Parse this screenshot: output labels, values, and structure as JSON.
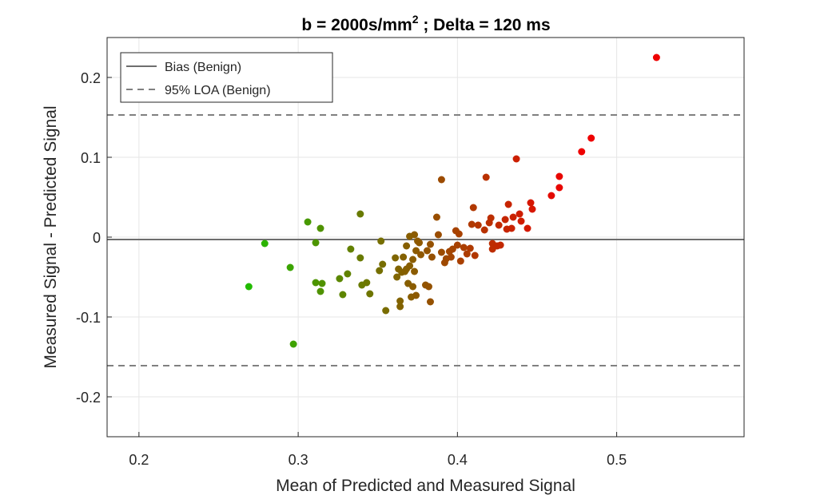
{
  "chart_data": {
    "type": "scatter",
    "title": "b = 2000s/mm",
    "title_superscript": "2",
    "title_suffix": " ; Delta = 120 ms",
    "xlabel": "Mean of Predicted and Measured Signal",
    "ylabel": "Measured Signal - Predicted Signal",
    "xlim": [
      0.18,
      0.58
    ],
    "ylim": [
      -0.25,
      0.25
    ],
    "xticks": [
      0.2,
      0.3,
      0.4,
      0.5
    ],
    "xtick_labels": [
      "0.2",
      "0.3",
      "0.4",
      "0.5"
    ],
    "yticks": [
      -0.2,
      -0.1,
      0,
      0.1,
      0.2
    ],
    "ytick_labels": [
      "-0.2",
      "-0.1",
      "0",
      "0.1",
      "0.2"
    ],
    "grid": true,
    "legend_position": "top-left",
    "legend": [
      {
        "label": "Bias (Benign)",
        "style": "solid"
      },
      {
        "label": "95% LOA (Benign)",
        "style": "dashed"
      }
    ],
    "reference_lines": {
      "bias": -0.003,
      "loa_upper": 0.153,
      "loa_lower": -0.161
    },
    "color_scale": {
      "low": "#22bb00",
      "high": "#ee0000",
      "low_x": 0.27,
      "high_x": 0.47
    },
    "points": [
      {
        "x": 0.269,
        "y": -0.062
      },
      {
        "x": 0.279,
        "y": -0.008
      },
      {
        "x": 0.295,
        "y": -0.038
      },
      {
        "x": 0.297,
        "y": -0.134
      },
      {
        "x": 0.306,
        "y": 0.019
      },
      {
        "x": 0.311,
        "y": -0.007
      },
      {
        "x": 0.311,
        "y": -0.057
      },
      {
        "x": 0.314,
        "y": 0.011
      },
      {
        "x": 0.314,
        "y": -0.068
      },
      {
        "x": 0.315,
        "y": -0.058
      },
      {
        "x": 0.326,
        "y": -0.052
      },
      {
        "x": 0.328,
        "y": -0.072
      },
      {
        "x": 0.331,
        "y": -0.046
      },
      {
        "x": 0.333,
        "y": -0.015
      },
      {
        "x": 0.339,
        "y": 0.029
      },
      {
        "x": 0.339,
        "y": -0.026
      },
      {
        "x": 0.34,
        "y": -0.06
      },
      {
        "x": 0.343,
        "y": -0.057
      },
      {
        "x": 0.345,
        "y": -0.071
      },
      {
        "x": 0.351,
        "y": -0.042
      },
      {
        "x": 0.352,
        "y": -0.005
      },
      {
        "x": 0.353,
        "y": -0.034
      },
      {
        "x": 0.355,
        "y": -0.092
      },
      {
        "x": 0.361,
        "y": -0.026
      },
      {
        "x": 0.362,
        "y": -0.05
      },
      {
        "x": 0.363,
        "y": -0.04
      },
      {
        "x": 0.364,
        "y": -0.08
      },
      {
        "x": 0.364,
        "y": -0.087
      },
      {
        "x": 0.365,
        "y": -0.044
      },
      {
        "x": 0.366,
        "y": -0.025
      },
      {
        "x": 0.367,
        "y": -0.043
      },
      {
        "x": 0.368,
        "y": -0.04
      },
      {
        "x": 0.368,
        "y": -0.011
      },
      {
        "x": 0.369,
        "y": -0.058
      },
      {
        "x": 0.37,
        "y": -0.036
      },
      {
        "x": 0.37,
        "y": 0.001
      },
      {
        "x": 0.371,
        "y": -0.075
      },
      {
        "x": 0.372,
        "y": -0.028
      },
      {
        "x": 0.372,
        "y": -0.062
      },
      {
        "x": 0.373,
        "y": -0.043
      },
      {
        "x": 0.373,
        "y": 0.003
      },
      {
        "x": 0.374,
        "y": -0.073
      },
      {
        "x": 0.374,
        "y": -0.017
      },
      {
        "x": 0.375,
        "y": -0.005
      },
      {
        "x": 0.376,
        "y": -0.007
      },
      {
        "x": 0.377,
        "y": -0.022
      },
      {
        "x": 0.38,
        "y": -0.06
      },
      {
        "x": 0.381,
        "y": -0.017
      },
      {
        "x": 0.382,
        "y": -0.062
      },
      {
        "x": 0.383,
        "y": -0.081
      },
      {
        "x": 0.383,
        "y": -0.009
      },
      {
        "x": 0.384,
        "y": -0.025
      },
      {
        "x": 0.387,
        "y": 0.025
      },
      {
        "x": 0.388,
        "y": 0.003
      },
      {
        "x": 0.39,
        "y": 0.072
      },
      {
        "x": 0.39,
        "y": -0.019
      },
      {
        "x": 0.392,
        "y": -0.032
      },
      {
        "x": 0.393,
        "y": -0.027
      },
      {
        "x": 0.395,
        "y": -0.018
      },
      {
        "x": 0.396,
        "y": -0.025
      },
      {
        "x": 0.397,
        "y": -0.015
      },
      {
        "x": 0.399,
        "y": 0.008
      },
      {
        "x": 0.4,
        "y": -0.01
      },
      {
        "x": 0.401,
        "y": 0.004
      },
      {
        "x": 0.402,
        "y": -0.03
      },
      {
        "x": 0.404,
        "y": -0.013
      },
      {
        "x": 0.406,
        "y": -0.021
      },
      {
        "x": 0.408,
        "y": -0.014
      },
      {
        "x": 0.409,
        "y": 0.016
      },
      {
        "x": 0.41,
        "y": 0.037
      },
      {
        "x": 0.411,
        "y": -0.023
      },
      {
        "x": 0.413,
        "y": 0.015
      },
      {
        "x": 0.417,
        "y": 0.009
      },
      {
        "x": 0.418,
        "y": 0.075
      },
      {
        "x": 0.42,
        "y": 0.018
      },
      {
        "x": 0.421,
        "y": 0.024
      },
      {
        "x": 0.422,
        "y": -0.008
      },
      {
        "x": 0.422,
        "y": -0.015
      },
      {
        "x": 0.425,
        "y": -0.011
      },
      {
        "x": 0.426,
        "y": 0.015
      },
      {
        "x": 0.427,
        "y": -0.01
      },
      {
        "x": 0.43,
        "y": 0.022
      },
      {
        "x": 0.431,
        "y": 0.01
      },
      {
        "x": 0.432,
        "y": 0.041
      },
      {
        "x": 0.434,
        "y": 0.011
      },
      {
        "x": 0.435,
        "y": 0.025
      },
      {
        "x": 0.437,
        "y": 0.098
      },
      {
        "x": 0.439,
        "y": 0.029
      },
      {
        "x": 0.44,
        "y": 0.02
      },
      {
        "x": 0.444,
        "y": 0.011
      },
      {
        "x": 0.446,
        "y": 0.043
      },
      {
        "x": 0.447,
        "y": 0.035
      },
      {
        "x": 0.459,
        "y": 0.052
      },
      {
        "x": 0.464,
        "y": 0.076
      },
      {
        "x": 0.464,
        "y": 0.062
      },
      {
        "x": 0.478,
        "y": 0.107
      },
      {
        "x": 0.484,
        "y": 0.124
      },
      {
        "x": 0.525,
        "y": 0.225
      }
    ]
  }
}
